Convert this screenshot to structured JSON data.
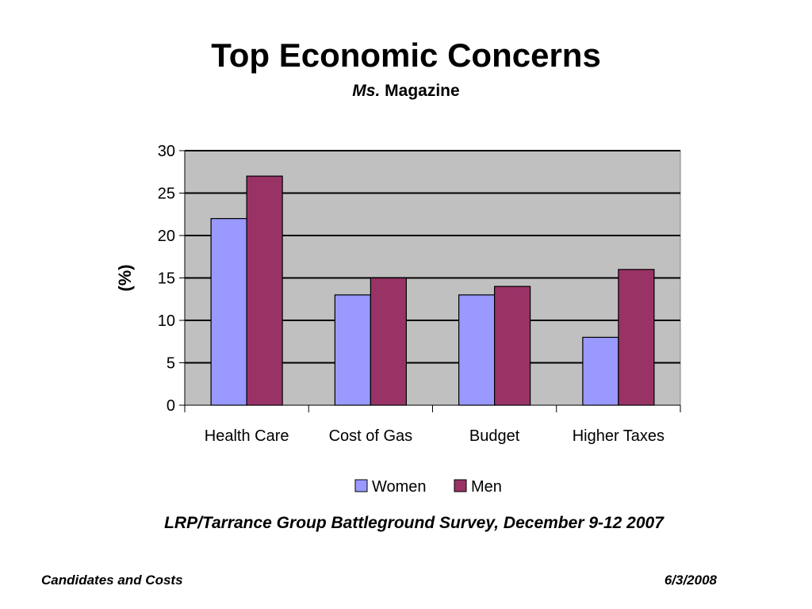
{
  "slide": {
    "title": "Top Economic Concerns",
    "subtitle_italic": "Ms.",
    "subtitle_rest": "Magazine",
    "source": "LRP/Tarrance Group Battleground Survey, December 9-12 2007",
    "footer_left": "Candidates and Costs",
    "footer_right": "6/3/2008"
  },
  "chart_data": {
    "type": "bar",
    "categories": [
      "Health Care",
      "Cost of Gas",
      "Budget",
      "Higher Taxes"
    ],
    "series": [
      {
        "name": "Women",
        "values": [
          22,
          13,
          13,
          8
        ],
        "color": "#9999ff"
      },
      {
        "name": "Men",
        "values": [
          27,
          15,
          14,
          16
        ],
        "color": "#993366"
      }
    ],
    "ylabel": "(%)",
    "ylim": [
      0,
      30
    ],
    "yticks": [
      0,
      5,
      10,
      15,
      20,
      25,
      30
    ],
    "grid": true,
    "plot_background": "#c0c0c0",
    "legend_position": "bottom"
  }
}
